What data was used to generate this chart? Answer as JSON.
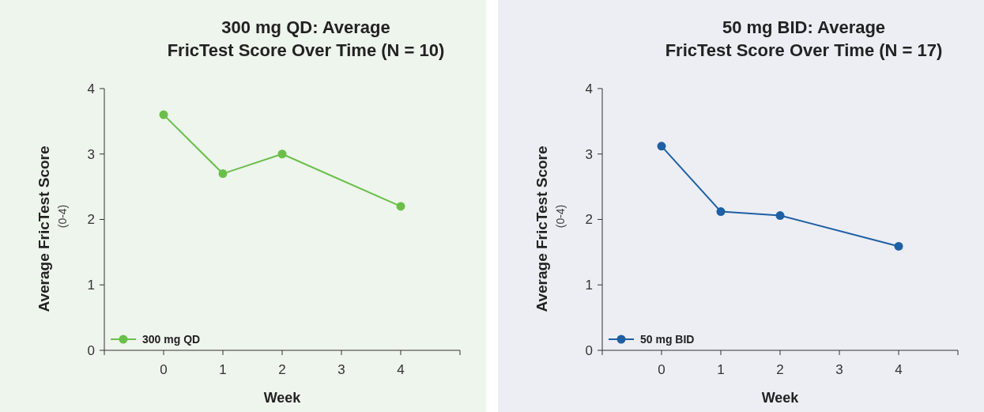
{
  "chart_data": [
    {
      "type": "line",
      "title": "300 mg QD: Average\nFricTest Score Over Time (N = 10)",
      "xlabel": "Week",
      "ylabel": "Average FricTest Score\n(0-4)",
      "x": [
        0,
        1,
        2,
        4
      ],
      "series": [
        {
          "name": "300 mg QD",
          "color": "#6abf4b",
          "values": [
            3.6,
            2.7,
            3.0,
            2.2
          ]
        }
      ],
      "xlim": [
        -1,
        5
      ],
      "xticks": [
        0,
        1,
        2,
        3,
        4
      ],
      "ylim": [
        0,
        4
      ],
      "yticks": [
        0,
        1,
        2,
        3,
        4
      ],
      "legend": "bottom left",
      "marker": "circle"
    },
    {
      "type": "line",
      "title": "50 mg BID: Average\nFricTest Score Over Time (N = 17)",
      "xlabel": "Week",
      "ylabel": "Average FricTest Score\n(0-4)",
      "x": [
        0,
        1,
        2,
        4
      ],
      "series": [
        {
          "name": "50 mg BID",
          "color": "#1f5fa3",
          "values": [
            3.12,
            2.12,
            2.06,
            1.59
          ]
        }
      ],
      "xlim": [
        -1,
        5
      ],
      "xticks": [
        0,
        1,
        2,
        3,
        4
      ],
      "ylim": [
        0,
        4
      ],
      "yticks": [
        0,
        1,
        2,
        3,
        4
      ],
      "legend": "bottom left",
      "marker": "circle"
    }
  ]
}
